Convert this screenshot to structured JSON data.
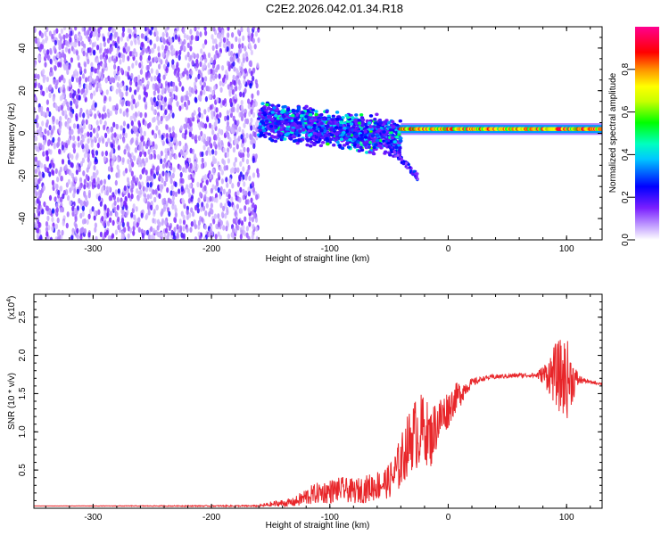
{
  "title": "C2E2.2026.042.01.34.R18",
  "chart_data": [
    {
      "type": "heatmap",
      "name": "spectrogram",
      "xlabel": "Height of straight line (km)",
      "ylabel": "Frequency (Hz)",
      "xlim": [
        -350,
        130
      ],
      "ylim": [
        -50,
        50
      ],
      "x_ticks": [
        -300,
        -200,
        -100,
        0,
        100
      ],
      "x_tick_labels": [
        "-300",
        "-200",
        "-100",
        "0",
        "100"
      ],
      "y_ticks": [
        -40,
        -20,
        0,
        20,
        40
      ],
      "y_tick_labels": [
        "-40",
        "-20",
        "0",
        "20",
        "40"
      ],
      "colorbar": {
        "label": "Normalized spectral amplitude",
        "range": [
          0,
          1
        ],
        "ticks": [
          0.0,
          0.2,
          0.4,
          0.6,
          0.8
        ],
        "tick_labels": [
          "0.0",
          "0.2",
          "0.4",
          "0.6",
          "0.8"
        ],
        "colors": [
          "#ffffff",
          "#9b30ff",
          "#0000ff",
          "#00ffff",
          "#00ff00",
          "#ffff00",
          "#ff8000",
          "#ff0000",
          "#ff0080"
        ]
      },
      "regions": [
        {
          "x_range": [
            -350,
            -160
          ],
          "f_range": [
            -50,
            50
          ],
          "amplitude": 0.15,
          "kind": "noise"
        },
        {
          "x_range": [
            -160,
            -40
          ],
          "f_center_start": 6,
          "f_center_end": -2,
          "f_halfwidth": 6,
          "amplitude": 0.35,
          "kind": "spread-signal"
        },
        {
          "x_range": [
            -40,
            130
          ],
          "f_center": 2,
          "f_halfwidth": 1.5,
          "amplitude": 0.9,
          "kind": "carrier"
        }
      ]
    },
    {
      "type": "line",
      "name": "snr",
      "xlabel": "Height of straight line (km)",
      "ylabel": "SNR (10 * v/v)",
      "y_multiplier_label": "(x10",
      "y_multiplier_exp": "4",
      "y_multiplier_close": ")",
      "xlim": [
        -350,
        130
      ],
      "ylim": [
        0,
        2.8
      ],
      "x_ticks": [
        -300,
        -200,
        -100,
        0,
        100
      ],
      "x_tick_labels": [
        "-300",
        "-200",
        "-100",
        "0",
        "100"
      ],
      "y_ticks": [
        0.5,
        1.0,
        1.5,
        2.0,
        2.5
      ],
      "y_tick_labels": [
        "0.5",
        "1.0",
        "1.5",
        "2.0",
        "2.5"
      ],
      "color": "#e8262a",
      "series": [
        {
          "x": [
            -350,
            -160,
            -150,
            -130,
            -120,
            -110,
            -100,
            -90,
            -80,
            -70,
            -60,
            -50,
            -45,
            -40,
            -35,
            -30,
            -25,
            -20,
            -15,
            -10,
            -5,
            0,
            5,
            10,
            15,
            20,
            25,
            30,
            40,
            50,
            60,
            70,
            75,
            80,
            85,
            90,
            95,
            100,
            105,
            110,
            115,
            120,
            130
          ],
          "y": [
            0.03,
            0.03,
            0.05,
            0.08,
            0.15,
            0.2,
            0.22,
            0.25,
            0.22,
            0.25,
            0.3,
            0.35,
            0.45,
            0.6,
            0.8,
            0.95,
            1.0,
            1.05,
            0.9,
            1.1,
            1.2,
            1.3,
            1.42,
            1.5,
            1.58,
            1.64,
            1.67,
            1.7,
            1.72,
            1.73,
            1.74,
            1.74,
            1.74,
            1.75,
            1.75,
            1.75,
            1.72,
            1.7,
            1.68,
            1.68,
            1.67,
            1.65,
            1.63
          ],
          "noise": [
            0,
            0.01,
            0.04,
            0.06,
            0.12,
            0.14,
            0.16,
            0.16,
            0.16,
            0.18,
            0.2,
            0.22,
            0.3,
            0.35,
            0.4,
            0.45,
            0.5,
            0.45,
            0.4,
            0.35,
            0.3,
            0.25,
            0.2,
            0.18,
            0.1,
            0.06,
            0.04,
            0.03,
            0.03,
            0.03,
            0.03,
            0.03,
            0.05,
            0.12,
            0.25,
            0.4,
            0.5,
            0.55,
            0.3,
            0.08,
            0.03,
            0.02,
            0.02
          ]
        }
      ]
    }
  ]
}
